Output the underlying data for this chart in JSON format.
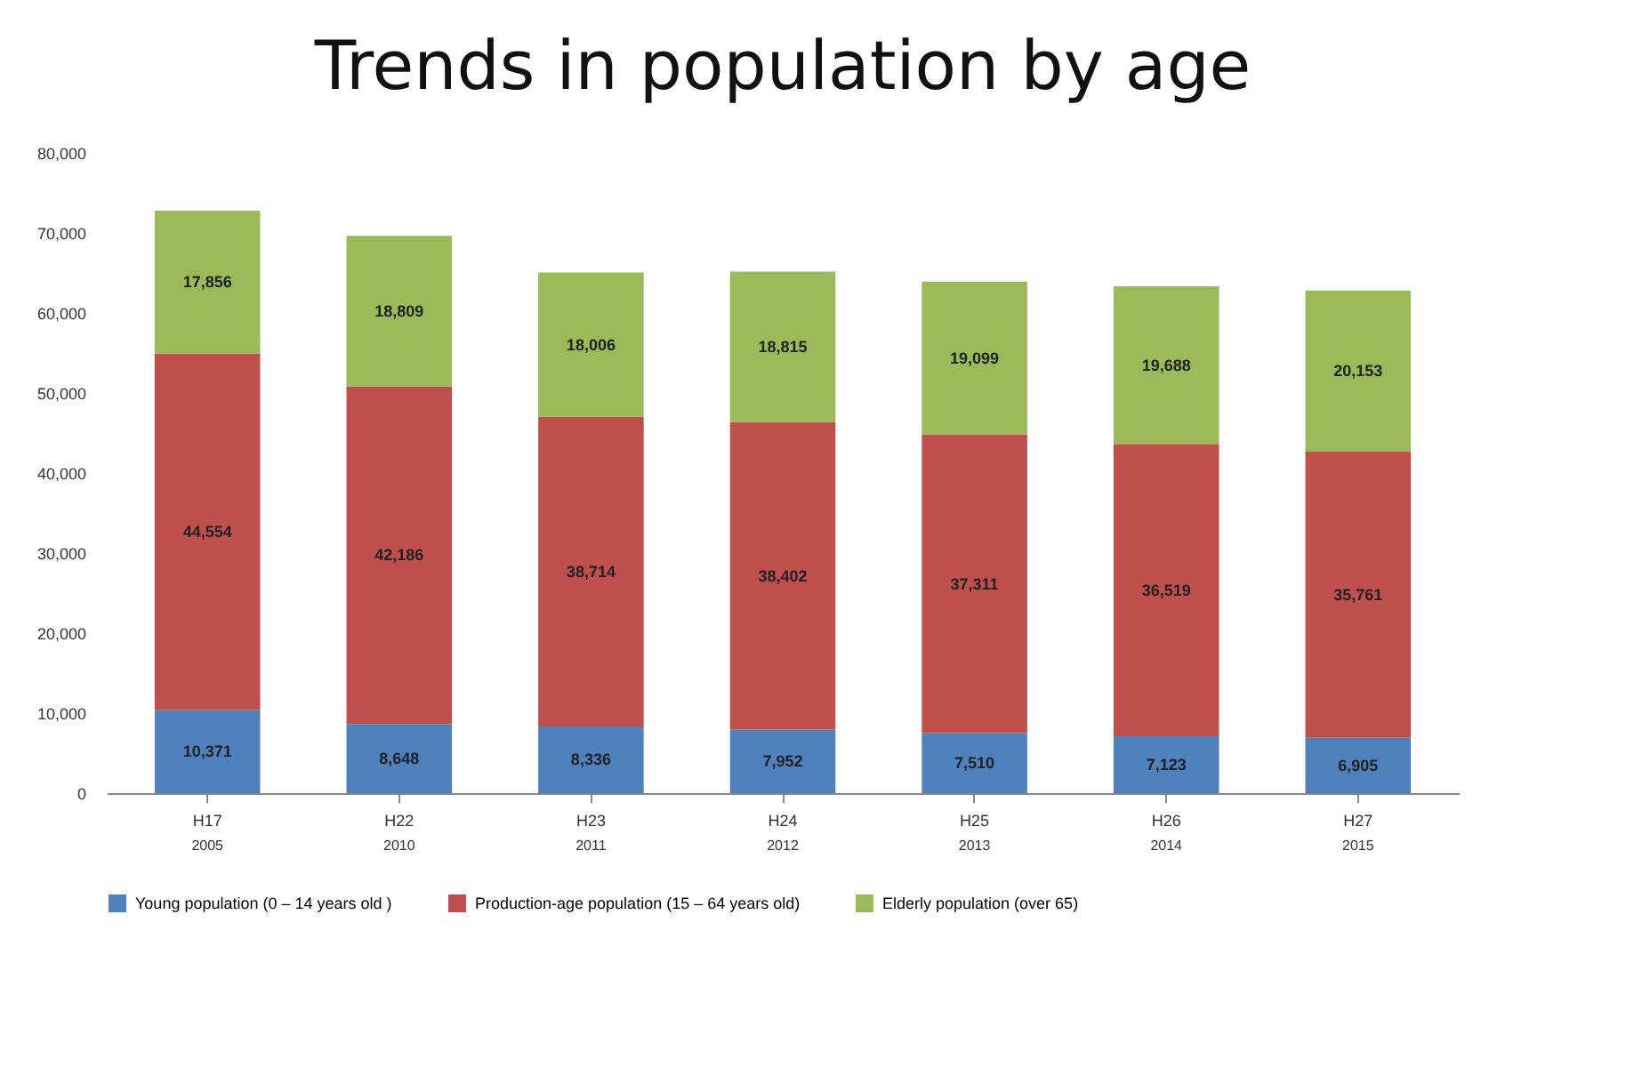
{
  "chart_data": {
    "type": "bar",
    "title": "Trends in population by age",
    "stacked": true,
    "legend": "bottom",
    "categories": [
      "H17",
      "H22",
      "H23",
      "H24",
      "H25",
      "H26",
      "H27"
    ],
    "series": [
      {
        "name": "Young population (0 – 14 years old )",
        "color": "#4f81bd",
        "values": [
          10371,
          8648,
          8336,
          7952,
          7510,
          7123,
          6905
        ],
        "value_labels": [
          "10,371",
          "8,648",
          "8,336",
          "7,952",
          "7,510",
          "7,123",
          "6,905"
        ]
      },
      {
        "name": "Production-age population (15 – 64 years old)",
        "color": "#c0504d",
        "values": [
          44554,
          42186,
          38714,
          38402,
          37311,
          36519,
          35761
        ],
        "value_labels": [
          "44,554",
          "42,186",
          "38,714",
          "38,402",
          "37,311",
          "36,519",
          "35,761"
        ]
      },
      {
        "name": "Elderly population (over 65)",
        "color": "#9bbb59",
        "values": [
          17856,
          18809,
          18006,
          18815,
          19099,
          19688,
          20153
        ],
        "value_labels": [
          "17,856",
          "18,809",
          "18,006",
          "18,815",
          "19,099",
          "19,688",
          "20,153"
        ]
      }
    ],
    "ylim": [
      0,
      80000
    ],
    "yticks": [
      0,
      {
        "value": 10000,
        "label": "10,000"
      },
      {
        "value": 20000,
        "label": "20,000"
      },
      {
        "value": 30000,
        "label": "30,000"
      },
      {
        "value": 40000,
        "label": "40,000"
      },
      {
        "value": 50000,
        "label": "50,000"
      },
      {
        "value": 60000,
        "label": "60,000"
      },
      {
        "value": 70000,
        "label": "70,000"
      },
      {
        "value": 80000,
        "label": "80,000"
      }
    ],
    "annotations": [
      "2005",
      "2010",
      "2011",
      "2012",
      "2013",
      "2014",
      "2015"
    ]
  }
}
